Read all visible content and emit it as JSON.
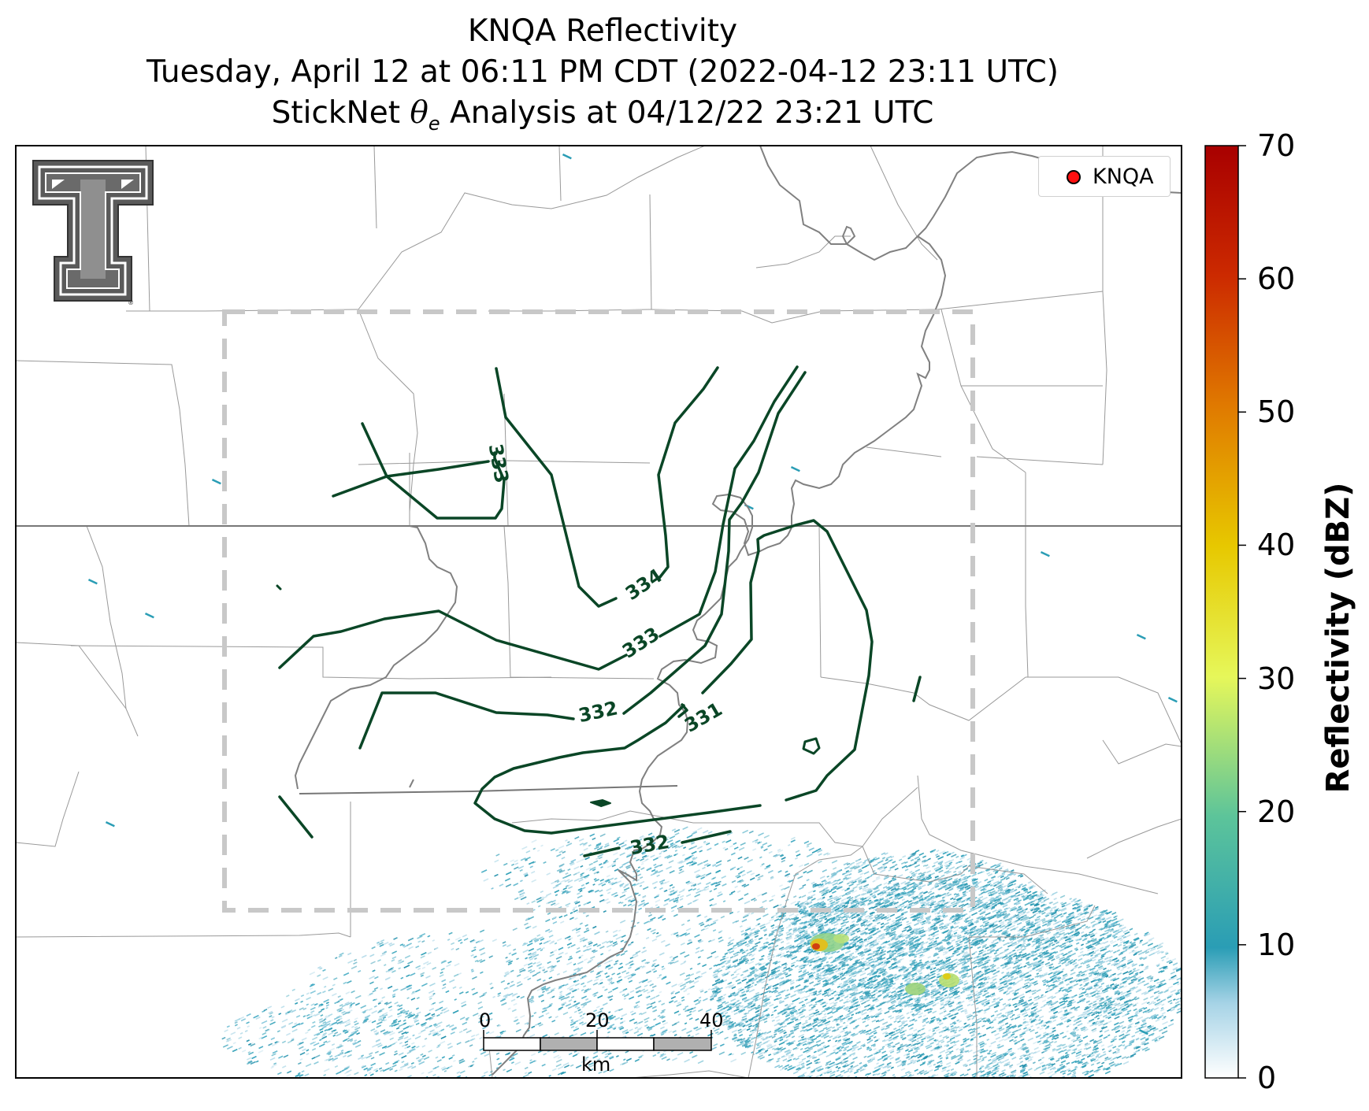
{
  "title": {
    "line1": "KNQA Reflectivity",
    "line2": "Tuesday, April 12 at 06:11 PM CDT (2022-04-12 23:11 UTC)",
    "line3_prefix": "StickNet ",
    "line3_symbol": "θ",
    "line3_subscript": "e",
    "line3_suffix": " Analysis at 04/12/22 23:21 UTC"
  },
  "legend": {
    "label": "KNQA",
    "marker_color": "#ff1010"
  },
  "colorbar": {
    "label": "Reflectivity (dBZ)",
    "ticks": [
      "0",
      "10",
      "20",
      "30",
      "40",
      "50",
      "60",
      "70"
    ],
    "min": 0,
    "max": 70,
    "colors": [
      "#ffffff",
      "#a6d3e6",
      "#2a9db5",
      "#5cc49a",
      "#e6f75a",
      "#e7c800",
      "#e07a00",
      "#cc2a00",
      "#a80000"
    ]
  },
  "scale_bar": {
    "labels": [
      "0",
      "20",
      "40"
    ],
    "unit": "km"
  },
  "contours": {
    "color": "#0a4626",
    "labels": [
      "333",
      "334",
      "333",
      "332",
      "331",
      "332"
    ]
  },
  "logo": {
    "name": "Texas Tech Double T"
  },
  "colors": {
    "boundary": "#999999",
    "state_line": "#777777",
    "river": "#808080",
    "domain_box": "#c8c8c8"
  }
}
